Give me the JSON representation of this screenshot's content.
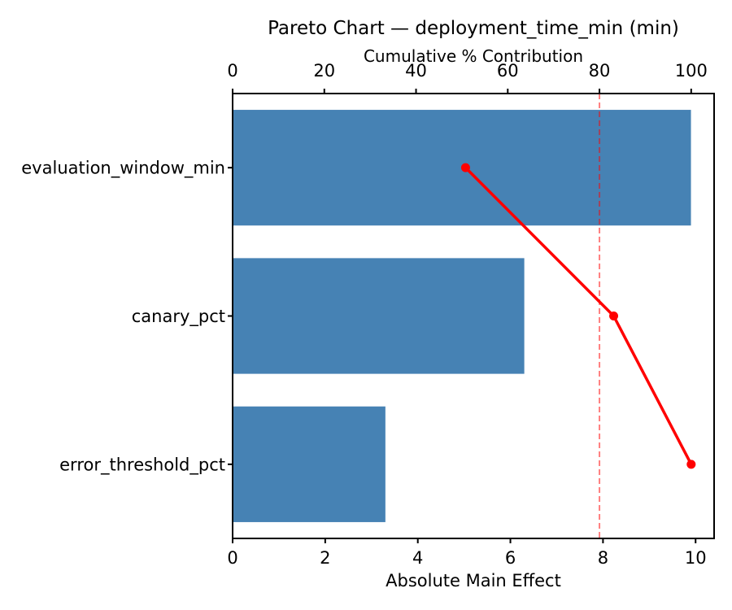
{
  "figure": {
    "background": "#ffffff"
  },
  "chart_data": {
    "type": "bar",
    "subtype": "pareto",
    "orientation": "horizontal",
    "title": "Pareto Chart — deployment_time_min (min)",
    "xlabel_top": "Cumulative % Contribution",
    "xlabel_bottom": "Absolute Main Effect",
    "categories": [
      "evaluation_window_min",
      "canary_pct",
      "error_threshold_pct"
    ],
    "values": [
      9.9,
      6.3,
      3.3
    ],
    "series": [
      {
        "name": "Absolute Main Effect",
        "type": "bar",
        "values": [
          9.9,
          6.3,
          3.3
        ]
      },
      {
        "name": "Cumulative % Contribution",
        "type": "line",
        "values": [
          50.8,
          83.1,
          100.0
        ]
      }
    ],
    "cumulative_pct": [
      50.8,
      83.1,
      100.0
    ],
    "threshold_pct": 80,
    "bottom_ticks": [
      0,
      2,
      4,
      6,
      8,
      10
    ],
    "top_ticks": [
      0,
      20,
      40,
      60,
      80,
      100
    ],
    "bottom_xlim": [
      0,
      10.4
    ],
    "top_xlim": [
      0,
      105
    ],
    "grid": false,
    "legend": false,
    "colors": {
      "bar": "#4682B4",
      "line": "#FF0000",
      "marker": "#FF0000",
      "threshold": "#FF0000",
      "threshold_alpha": 0.5,
      "axis": "#000000",
      "text": "#000000"
    }
  }
}
